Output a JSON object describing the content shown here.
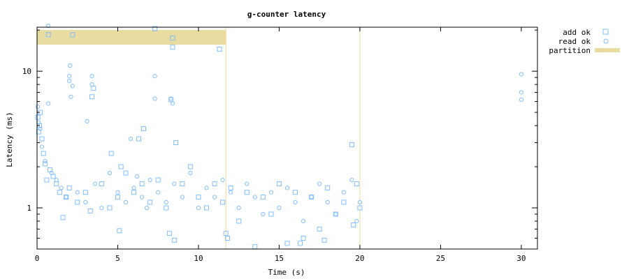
{
  "chart_data": {
    "type": "scatter",
    "title": "g-counter latency",
    "xlabel": "Time (s)",
    "ylabel": "Latency (ms)",
    "xlim": [
      0,
      31
    ],
    "ylim": [
      0.5,
      21
    ],
    "y_scale": "log",
    "x_ticks": [
      0,
      5,
      10,
      15,
      20,
      25,
      30
    ],
    "x_tick_labels": [
      "0",
      "5",
      "10",
      "15",
      "20",
      "25",
      "30"
    ],
    "y_ticks": [
      1,
      10
    ],
    "y_tick_labels": [
      "1",
      "10"
    ],
    "grid": false,
    "legend_position": "outside-top-right",
    "colors": {
      "points": "#7fbfff",
      "partition": "#e8dca0"
    },
    "series": [
      {
        "name": "add ok",
        "marker": "square",
        "points": [
          [
            0.05,
            4.6
          ],
          [
            0.1,
            3.6
          ],
          [
            0.15,
            4.0
          ],
          [
            0.2,
            5.0
          ],
          [
            0.3,
            3.2
          ],
          [
            0.4,
            2.5
          ],
          [
            0.5,
            2.1
          ],
          [
            0.6,
            1.6
          ],
          [
            0.7,
            18.5
          ],
          [
            0.8,
            1.9
          ],
          [
            1.0,
            1.7
          ],
          [
            1.2,
            1.5
          ],
          [
            1.4,
            1.3
          ],
          [
            1.6,
            0.85
          ],
          [
            1.8,
            1.2
          ],
          [
            2.0,
            1.4
          ],
          [
            2.2,
            18.5
          ],
          [
            2.5,
            1.1
          ],
          [
            3.0,
            1.3
          ],
          [
            3.3,
            0.95
          ],
          [
            3.4,
            6.5
          ],
          [
            3.5,
            7.5
          ],
          [
            4.0,
            1.5
          ],
          [
            4.5,
            1.0
          ],
          [
            4.6,
            2.5
          ],
          [
            5.0,
            1.2
          ],
          [
            5.1,
            0.68
          ],
          [
            5.2,
            2.0
          ],
          [
            5.5,
            1.8
          ],
          [
            6.0,
            1.3
          ],
          [
            6.3,
            3.2
          ],
          [
            6.5,
            1.5
          ],
          [
            6.6,
            3.8
          ],
          [
            7.0,
            1.1
          ],
          [
            7.3,
            20.5
          ],
          [
            7.5,
            1.6
          ],
          [
            8.0,
            1.0
          ],
          [
            8.2,
            0.65
          ],
          [
            8.3,
            6.2
          ],
          [
            8.4,
            17.5
          ],
          [
            8.4,
            15.0
          ],
          [
            8.5,
            0.58
          ],
          [
            8.6,
            3.0
          ],
          [
            9.0,
            1.5
          ],
          [
            9.5,
            2.0
          ],
          [
            10.0,
            1.2
          ],
          [
            10.5,
            1.0
          ],
          [
            11.0,
            1.5
          ],
          [
            11.3,
            14.5
          ],
          [
            11.5,
            1.1
          ],
          [
            11.7,
            0.65
          ],
          [
            11.8,
            0.6
          ],
          [
            12.0,
            1.4
          ],
          [
            12.5,
            0.8
          ],
          [
            13.0,
            1.3
          ],
          [
            13.5,
            0.52
          ],
          [
            14.0,
            1.2
          ],
          [
            14.5,
            0.9
          ],
          [
            15.0,
            1.5
          ],
          [
            15.5,
            0.55
          ],
          [
            16.0,
            1.3
          ],
          [
            16.3,
            0.55
          ],
          [
            16.5,
            0.6
          ],
          [
            17.0,
            1.2
          ],
          [
            17.5,
            0.7
          ],
          [
            17.8,
            0.58
          ],
          [
            18.0,
            1.4
          ],
          [
            18.5,
            0.9
          ],
          [
            19.0,
            1.1
          ],
          [
            19.5,
            2.9
          ],
          [
            19.6,
            0.75
          ],
          [
            19.8,
            1.5
          ],
          [
            20.0,
            1.0
          ]
        ]
      },
      {
        "name": "read ok",
        "marker": "circle",
        "points": [
          [
            0.05,
            5.5
          ],
          [
            0.1,
            4.2
          ],
          [
            0.2,
            3.8
          ],
          [
            0.3,
            2.8
          ],
          [
            0.5,
            2.2
          ],
          [
            0.7,
            5.8
          ],
          [
            0.7,
            21.5
          ],
          [
            0.9,
            1.8
          ],
          [
            1.2,
            1.6
          ],
          [
            1.5,
            1.4
          ],
          [
            1.8,
            1.2
          ],
          [
            2.0,
            8.5
          ],
          [
            2.0,
            9.2
          ],
          [
            2.05,
            11.0
          ],
          [
            2.1,
            6.5
          ],
          [
            2.2,
            7.8
          ],
          [
            2.5,
            1.3
          ],
          [
            3.0,
            1.1
          ],
          [
            3.1,
            4.3
          ],
          [
            3.4,
            8.0
          ],
          [
            3.4,
            9.2
          ],
          [
            3.6,
            1.5
          ],
          [
            4.0,
            1.0
          ],
          [
            4.5,
            1.8
          ],
          [
            5.0,
            1.3
          ],
          [
            5.5,
            1.1
          ],
          [
            5.8,
            3.2
          ],
          [
            6.0,
            1.4
          ],
          [
            6.2,
            1.7
          ],
          [
            6.5,
            1.2
          ],
          [
            6.8,
            1.0
          ],
          [
            7.0,
            1.6
          ],
          [
            7.3,
            9.2
          ],
          [
            7.3,
            6.3
          ],
          [
            7.5,
            1.3
          ],
          [
            8.0,
            1.1
          ],
          [
            8.3,
            6.3
          ],
          [
            8.4,
            5.8
          ],
          [
            8.5,
            1.5
          ],
          [
            9.0,
            1.2
          ],
          [
            9.5,
            1.8
          ],
          [
            10.0,
            1.0
          ],
          [
            10.5,
            1.4
          ],
          [
            11.0,
            1.2
          ],
          [
            11.5,
            1.6
          ],
          [
            12.0,
            1.3
          ],
          [
            12.5,
            1.0
          ],
          [
            13.0,
            1.5
          ],
          [
            13.5,
            1.2
          ],
          [
            14.0,
            0.9
          ],
          [
            14.5,
            1.3
          ],
          [
            15.0,
            1.0
          ],
          [
            15.5,
            1.4
          ],
          [
            16.0,
            1.1
          ],
          [
            16.5,
            0.8
          ],
          [
            17.0,
            1.2
          ],
          [
            17.5,
            1.5
          ],
          [
            18.0,
            1.1
          ],
          [
            18.5,
            0.9
          ],
          [
            19.0,
            1.3
          ],
          [
            19.5,
            1.6
          ],
          [
            19.8,
            0.8
          ],
          [
            20.0,
            1.1
          ],
          [
            30.0,
            9.5
          ],
          [
            30.0,
            7.0
          ],
          [
            30.0,
            6.2
          ]
        ]
      }
    ],
    "partition": {
      "name": "partition",
      "bands": [
        [
          0,
          11.7
        ]
      ],
      "vlines": [
        11.7,
        20.0
      ]
    }
  }
}
